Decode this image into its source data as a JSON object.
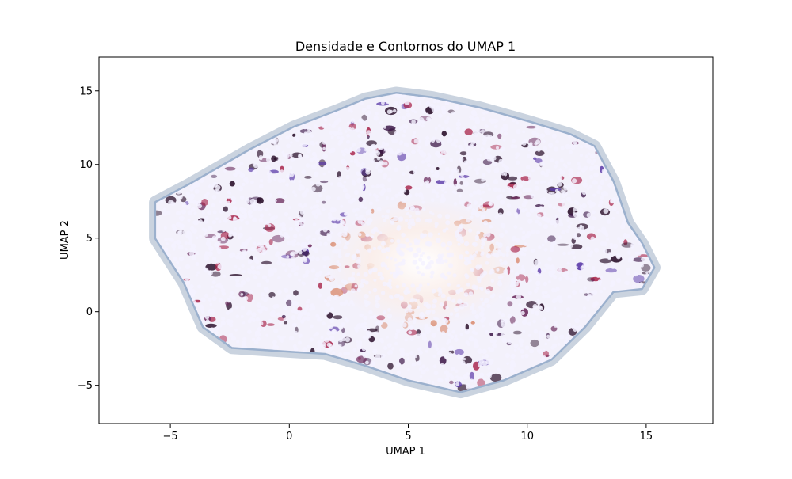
{
  "chart_data": {
    "type": "scatter",
    "title": "Densidade e Contornos do UMAP 1",
    "xlabel": "UMAP 1",
    "ylabel": "UMAP 2",
    "xlim": [
      -8,
      17.8
    ],
    "ylim": [
      -7.6,
      17.3
    ],
    "xticks": [
      -5,
      0,
      5,
      10,
      15
    ],
    "yticks": [
      -5,
      0,
      5,
      10,
      15
    ],
    "grid": false,
    "legend": "none",
    "density_center": [
      5.6,
      3.3
    ],
    "point_cloud_outline": [
      [
        -1.6,
        11.0
      ],
      [
        0.2,
        12.5
      ],
      [
        2.0,
        13.6
      ],
      [
        3.2,
        14.4
      ],
      [
        4.5,
        14.8
      ],
      [
        6.0,
        14.5
      ],
      [
        8.0,
        13.8
      ],
      [
        10.2,
        12.8
      ],
      [
        11.8,
        12.0
      ],
      [
        12.8,
        11.2
      ],
      [
        13.6,
        8.8
      ],
      [
        14.2,
        6.0
      ],
      [
        14.8,
        4.6
      ],
      [
        15.3,
        3.0
      ],
      [
        14.8,
        1.6
      ],
      [
        13.6,
        1.4
      ],
      [
        12.4,
        -1.0
      ],
      [
        11.0,
        -3.2
      ],
      [
        9.0,
        -4.6
      ],
      [
        7.2,
        -5.4
      ],
      [
        5.0,
        -4.6
      ],
      [
        3.2,
        -3.6
      ],
      [
        1.5,
        -2.8
      ],
      [
        -0.5,
        -2.6
      ],
      [
        -2.4,
        -2.4
      ],
      [
        -3.6,
        -1.0
      ],
      [
        -4.4,
        2.0
      ],
      [
        -5.6,
        5.0
      ],
      [
        -5.6,
        7.4
      ],
      [
        -4.2,
        8.6
      ]
    ],
    "colors": {
      "outer_contour": "#b8c4d4",
      "inner_contour": "#8fa8c8",
      "points": "#f4f2ff",
      "dense_dark": "#2a0f2a",
      "dense_purple": "#5b3aa8",
      "dense_red": "#a8244a",
      "dense_peach": "#d98a6e"
    }
  }
}
